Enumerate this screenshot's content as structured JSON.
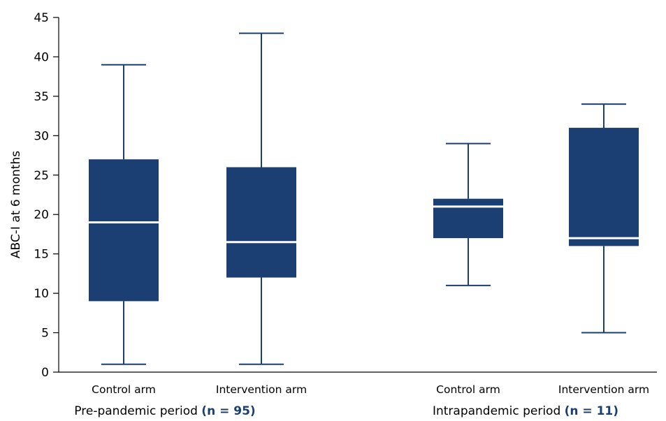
{
  "chart_data": {
    "type": "boxplot",
    "ylabel": "ABC-I at 6 months",
    "ylim": [
      0,
      45
    ],
    "yticks": [
      "0",
      "5",
      "10",
      "15",
      "20",
      "25",
      "30",
      "35",
      "40",
      "45"
    ],
    "box_color": "#1c3f73",
    "median_color": "#ffffff",
    "n_color": "#1c3f73",
    "groups": [
      {
        "label": "Pre-pandemic period",
        "n_text": "(n = 95)",
        "boxes": [
          {
            "category": "Control arm",
            "min": 1,
            "q1": 9,
            "median": 19,
            "q3": 27,
            "max": 39
          },
          {
            "category": "Intervention arm",
            "min": 1,
            "q1": 12,
            "median": 16.5,
            "q3": 26,
            "max": 43
          }
        ]
      },
      {
        "label": "Intrapandemic period",
        "n_text": "(n = 11)",
        "boxes": [
          {
            "category": "Control arm",
            "min": 11,
            "q1": 17,
            "median": 21,
            "q3": 22,
            "max": 29
          },
          {
            "category": "Intervention arm",
            "min": 5,
            "q1": 16,
            "median": 17,
            "q3": 31,
            "max": 34
          }
        ]
      }
    ]
  }
}
